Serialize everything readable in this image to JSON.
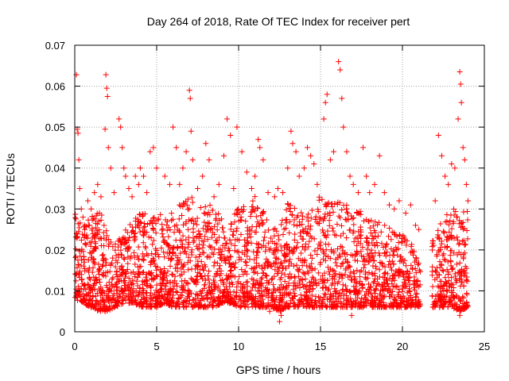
{
  "chart_data": {
    "type": "scatter",
    "title": "Day 264 of 2018, Rate Of TEC Index for receiver pert",
    "xlabel": "GPS time / hours",
    "ylabel": "ROTI / TECUs",
    "xlim": [
      0,
      25
    ],
    "ylim": [
      0,
      0.07
    ],
    "x_ticks": [
      0,
      5,
      10,
      15,
      20,
      25
    ],
    "x_tick_labels": [
      "0",
      "5",
      "10",
      "15",
      "20",
      "25"
    ],
    "y_ticks": [
      0,
      0.01,
      0.02,
      0.03,
      0.04,
      0.05,
      0.06,
      0.07
    ],
    "y_tick_labels": [
      "0",
      "0.01",
      "0.02",
      "0.03",
      "0.04",
      "0.05",
      "0.06",
      "0.07"
    ],
    "grid": true,
    "marker": "+",
    "series_color": "#ff0000",
    "series": [
      {
        "name": "ROTI",
        "points": [
          [
            0.1,
            0.0628
          ],
          [
            0.15,
            0.0495
          ],
          [
            0.2,
            0.0485
          ],
          [
            0.25,
            0.042
          ],
          [
            0.3,
            0.035
          ],
          [
            0.4,
            0.03
          ],
          [
            0.5,
            0.028
          ],
          [
            0.6,
            0.026
          ],
          [
            0.8,
            0.032
          ],
          [
            1.0,
            0.03
          ],
          [
            1.2,
            0.034
          ],
          [
            1.4,
            0.036
          ],
          [
            1.6,
            0.033
          ],
          [
            1.9,
            0.0628
          ],
          [
            1.95,
            0.0595
          ],
          [
            2.0,
            0.0575
          ],
          [
            1.85,
            0.0495
          ],
          [
            2.05,
            0.045
          ],
          [
            2.2,
            0.04
          ],
          [
            2.4,
            0.034
          ],
          [
            2.7,
            0.052
          ],
          [
            2.8,
            0.05
          ],
          [
            2.9,
            0.045
          ],
          [
            3.0,
            0.04
          ],
          [
            3.1,
            0.038
          ],
          [
            3.3,
            0.035
          ],
          [
            3.5,
            0.033
          ],
          [
            3.7,
            0.038
          ],
          [
            3.9,
            0.036
          ],
          [
            4.0,
            0.04
          ],
          [
            4.2,
            0.038
          ],
          [
            4.4,
            0.034
          ],
          [
            4.6,
            0.044
          ],
          [
            4.8,
            0.045
          ],
          [
            5.0,
            0.04
          ],
          [
            5.5,
            0.038
          ],
          [
            5.8,
            0.036
          ],
          [
            6.0,
            0.05
          ],
          [
            6.2,
            0.045
          ],
          [
            6.4,
            0.036
          ],
          [
            6.6,
            0.04
          ],
          [
            6.8,
            0.044
          ],
          [
            7.0,
            0.059
          ],
          [
            7.05,
            0.057
          ],
          [
            7.1,
            0.049
          ],
          [
            7.2,
            0.042
          ],
          [
            7.5,
            0.035
          ],
          [
            7.8,
            0.038
          ],
          [
            8.0,
            0.046
          ],
          [
            8.2,
            0.042
          ],
          [
            8.5,
            0.033
          ],
          [
            8.8,
            0.036
          ],
          [
            9.1,
            0.043
          ],
          [
            9.3,
            0.052
          ],
          [
            9.5,
            0.048
          ],
          [
            9.7,
            0.035
          ],
          [
            9.9,
            0.05
          ],
          [
            10.2,
            0.044
          ],
          [
            10.5,
            0.039
          ],
          [
            10.8,
            0.035
          ],
          [
            11.0,
            0.038
          ],
          [
            11.2,
            0.047
          ],
          [
            11.3,
            0.045
          ],
          [
            11.5,
            0.042
          ],
          [
            11.8,
            0.034
          ],
          [
            12.2,
            0.033
          ],
          [
            12.4,
            0.035
          ],
          [
            12.7,
            0.034
          ],
          [
            13.0,
            0.04
          ],
          [
            13.2,
            0.049
          ],
          [
            13.3,
            0.046
          ],
          [
            13.5,
            0.044
          ],
          [
            13.7,
            0.038
          ],
          [
            14.0,
            0.04
          ],
          [
            14.2,
            0.045
          ],
          [
            14.4,
            0.043
          ],
          [
            14.6,
            0.041
          ],
          [
            14.8,
            0.036
          ],
          [
            15.2,
            0.052
          ],
          [
            15.3,
            0.056
          ],
          [
            15.4,
            0.058
          ],
          [
            15.6,
            0.042
          ],
          [
            15.8,
            0.044
          ],
          [
            16.1,
            0.066
          ],
          [
            16.2,
            0.064
          ],
          [
            16.3,
            0.057
          ],
          [
            16.4,
            0.05
          ],
          [
            16.6,
            0.044
          ],
          [
            16.8,
            0.038
          ],
          [
            17.0,
            0.036
          ],
          [
            17.3,
            0.034
          ],
          [
            17.6,
            0.045
          ],
          [
            17.8,
            0.038
          ],
          [
            18.0,
            0.034
          ],
          [
            18.3,
            0.036
          ],
          [
            18.6,
            0.043
          ],
          [
            18.9,
            0.034
          ],
          [
            19.2,
            0.031
          ],
          [
            19.5,
            0.03
          ],
          [
            19.8,
            0.032
          ],
          [
            20.2,
            0.029
          ],
          [
            20.5,
            0.031
          ],
          [
            20.8,
            0.026
          ],
          [
            21.0,
            0.025
          ],
          [
            22.0,
            0.032
          ],
          [
            22.2,
            0.048
          ],
          [
            22.4,
            0.043
          ],
          [
            22.6,
            0.038
          ],
          [
            22.8,
            0.036
          ],
          [
            23.0,
            0.041
          ],
          [
            23.2,
            0.04
          ],
          [
            23.4,
            0.052
          ],
          [
            23.5,
            0.0635
          ],
          [
            23.55,
            0.0605
          ],
          [
            23.6,
            0.056
          ],
          [
            23.7,
            0.045
          ],
          [
            23.8,
            0.042
          ],
          [
            23.9,
            0.036
          ],
          [
            24.0,
            0.032
          ],
          [
            12.5,
            0.0025
          ],
          [
            12.6,
            0.004
          ],
          [
            11.9,
            0.005
          ],
          [
            16.9,
            0.004
          ],
          [
            23.5,
            0.004
          ]
        ],
        "density_profile": [
          [
            0,
            0.008,
            0.03
          ],
          [
            0.5,
            0.007,
            0.026
          ],
          [
            1,
            0.006,
            0.028
          ],
          [
            1.5,
            0.005,
            0.03
          ],
          [
            2,
            0.005,
            0.025
          ],
          [
            2.5,
            0.006,
            0.022
          ],
          [
            3,
            0.007,
            0.025
          ],
          [
            3.5,
            0.007,
            0.027
          ],
          [
            4,
            0.006,
            0.03
          ],
          [
            4.5,
            0.006,
            0.028
          ],
          [
            5,
            0.006,
            0.03
          ],
          [
            5.5,
            0.007,
            0.028
          ],
          [
            6,
            0.006,
            0.03
          ],
          [
            6.5,
            0.006,
            0.032
          ],
          [
            7,
            0.006,
            0.034
          ],
          [
            7.5,
            0.006,
            0.03
          ],
          [
            8,
            0.006,
            0.032
          ],
          [
            8.5,
            0.006,
            0.03
          ],
          [
            9,
            0.007,
            0.028
          ],
          [
            9.5,
            0.007,
            0.026
          ],
          [
            10,
            0.006,
            0.032
          ],
          [
            10.5,
            0.006,
            0.03
          ],
          [
            11,
            0.006,
            0.034
          ],
          [
            11.5,
            0.006,
            0.03
          ],
          [
            12,
            0.006,
            0.026
          ],
          [
            12.5,
            0.005,
            0.025
          ],
          [
            13,
            0.006,
            0.032
          ],
          [
            13.5,
            0.006,
            0.032
          ],
          [
            14,
            0.006,
            0.03
          ],
          [
            14.5,
            0.006,
            0.03
          ],
          [
            15,
            0.006,
            0.034
          ],
          [
            15.5,
            0.006,
            0.034
          ],
          [
            16,
            0.006,
            0.036
          ],
          [
            16.5,
            0.006,
            0.032
          ],
          [
            17,
            0.006,
            0.03
          ],
          [
            17.5,
            0.006,
            0.03
          ],
          [
            18,
            0.006,
            0.028
          ],
          [
            18.5,
            0.006,
            0.028
          ],
          [
            19,
            0.006,
            0.026
          ],
          [
            19.5,
            0.006,
            0.025
          ],
          [
            20,
            0.006,
            0.024
          ],
          [
            20.5,
            0.006,
            0.022
          ],
          [
            21,
            0.006,
            0.018
          ],
          [
            21.8,
            0.006,
            0.022
          ],
          [
            22.5,
            0.006,
            0.028
          ],
          [
            23,
            0.006,
            0.03
          ],
          [
            23.5,
            0.005,
            0.03
          ],
          [
            24,
            0.006,
            0.03
          ]
        ],
        "gaps": [
          [
            21.1,
            21.8
          ]
        ]
      }
    ]
  }
}
